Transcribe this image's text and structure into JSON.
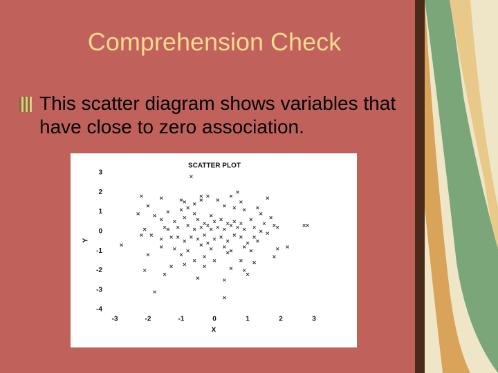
{
  "title": "Comprehension Check",
  "bullet": "This scatter diagram shows variables that have close to zero association.",
  "chart_data": {
    "type": "scatter",
    "title": "SCATTER PLOT",
    "x_label": "X",
    "y_label": "Y",
    "color": "#333333",
    "x": [
      -0.7,
      -2.2,
      -1.6,
      -0.4,
      -0.2,
      0.7,
      0.5,
      1.6,
      -1.0,
      -0.9,
      -0.6,
      -0.4,
      0.1,
      0.8,
      0.6,
      -0.8,
      -1.0,
      -2.0,
      -2.3,
      -1.8,
      -1.4,
      -0.6,
      -0.1,
      0.3,
      0.9,
      1.3,
      1.4,
      1.7,
      -1.6,
      -1.2,
      -0.9,
      -0.5,
      -0.3,
      0.0,
      0.2,
      0.4,
      0.6,
      0.8,
      1.1,
      1.5,
      1.8,
      2.8,
      -2.1,
      -1.5,
      -1.4,
      -1.1,
      -0.8,
      -0.6,
      -0.4,
      -0.2,
      -0.1,
      0.1,
      0.3,
      0.5,
      0.7,
      0.9,
      1.2,
      1.4,
      1.9,
      -2.2,
      -1.9,
      -1.6,
      -1.3,
      -1.1,
      -0.9,
      -0.7,
      -0.5,
      -0.3,
      -0.2,
      0.0,
      0.2,
      0.4,
      0.6,
      0.8,
      1.0,
      1.2,
      1.3,
      1.6,
      -2.8,
      -1.6,
      -1.2,
      -0.8,
      -0.4,
      -0.1,
      0.3,
      0.5,
      0.9,
      1.1,
      1.9,
      2.2,
      -2.0,
      -1.0,
      -0.6,
      -0.3,
      0.0,
      0.4,
      0.8,
      1.2,
      1.8,
      -1.3,
      -0.9,
      -0.3,
      0.5,
      0.9,
      -1.5,
      -0.5,
      0.3,
      1.0,
      -1.8,
      0.3,
      -2.1,
      2.7
    ],
    "y": [
      2.8,
      1.8,
      1.7,
      1.8,
      1.8,
      2.0,
      1.8,
      1.7,
      1.6,
      1.5,
      1.4,
      1.6,
      1.6,
      1.5,
      1.2,
      1.2,
      1.1,
      1.3,
      0.9,
      0.8,
      1.0,
      0.9,
      0.8,
      1.3,
      1.1,
      1.2,
      0.9,
      0.7,
      0.6,
      0.5,
      0.7,
      0.6,
      0.4,
      0.5,
      0.6,
      0.4,
      0.5,
      0.4,
      0.6,
      0.4,
      0.3,
      0.3,
      0.1,
      0.2,
      0.1,
      0.2,
      0.3,
      0.1,
      0.2,
      0.3,
      0.1,
      0.2,
      0.1,
      0.3,
      0.2,
      0.1,
      0.2,
      0.0,
      0.2,
      -0.2,
      -0.2,
      -0.4,
      -0.3,
      -0.3,
      -0.5,
      -0.3,
      -0.4,
      -0.2,
      -0.6,
      -0.4,
      -0.3,
      -0.5,
      -0.2,
      -0.3,
      -0.6,
      -0.3,
      -0.5,
      -0.1,
      -0.7,
      -0.8,
      -0.9,
      -1.0,
      -0.7,
      -0.9,
      -0.8,
      -1.0,
      -0.8,
      -1.0,
      -0.9,
      -0.8,
      -1.2,
      -1.2,
      -1.5,
      -1.3,
      -1.5,
      -1.1,
      -1.5,
      -1.6,
      -1.3,
      -1.8,
      -1.7,
      -1.8,
      -1.9,
      -2.0,
      -2.2,
      -2.4,
      -2.5,
      -2.2,
      -3.1,
      -3.4,
      -2.0,
      0.3
    ],
    "xlim": [
      -3,
      3
    ],
    "ylim": [
      -4,
      3
    ],
    "xticks": [
      -3,
      -2,
      -1,
      0,
      1,
      2,
      3
    ],
    "yticks": [
      -4,
      -3,
      -2,
      -1,
      0,
      1,
      2,
      3
    ]
  }
}
